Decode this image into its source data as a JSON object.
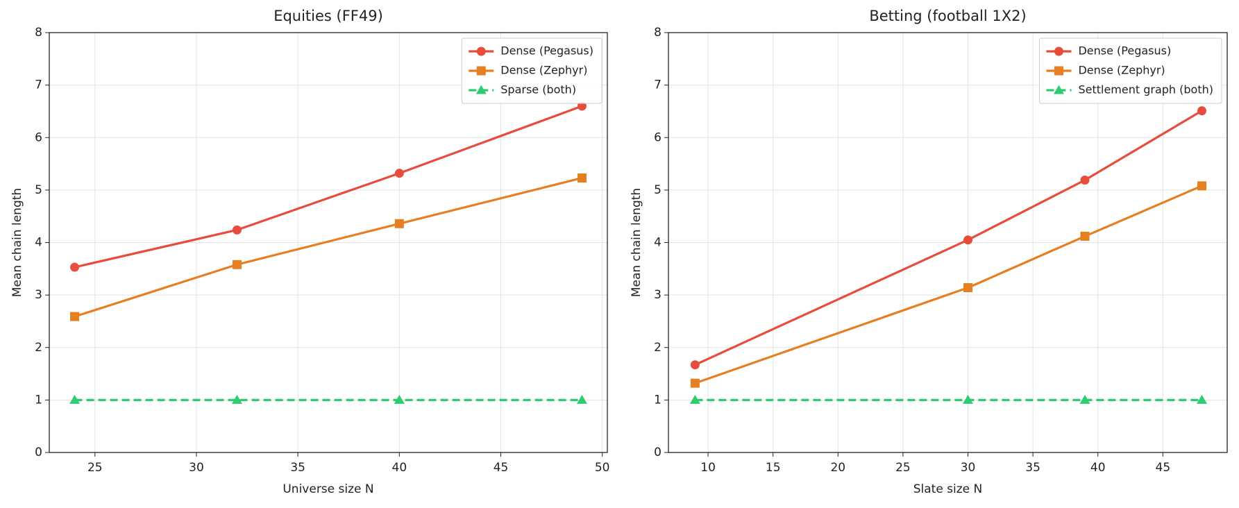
{
  "chart_data": [
    {
      "type": "line",
      "title": "Equities (FF49)",
      "xlabel": "Universe size N",
      "ylabel": "Mean chain length",
      "x": [
        24,
        32,
        40,
        49
      ],
      "series": [
        {
          "name": "Dense (Pegasus)",
          "color": "#e74c3c",
          "marker": "circle",
          "linestyle": "solid",
          "values": [
            3.53,
            4.24,
            5.32,
            6.6
          ]
        },
        {
          "name": "Dense (Zephyr)",
          "color": "#e67e22",
          "marker": "square",
          "linestyle": "solid",
          "values": [
            2.59,
            3.58,
            4.36,
            5.23
          ]
        },
        {
          "name": "Sparse (both)",
          "color": "#2ecc71",
          "marker": "triangle",
          "linestyle": "dashed",
          "values": [
            1,
            1,
            1,
            1
          ]
        }
      ],
      "xlim": [
        22.75,
        50.25
      ],
      "ylim": [
        0,
        8
      ],
      "xticks": [
        25,
        30,
        35,
        40,
        45,
        50
      ],
      "yticks": [
        0,
        1,
        2,
        3,
        4,
        5,
        6,
        7,
        8
      ],
      "grid": true,
      "legend": "upper right"
    },
    {
      "type": "line",
      "title": "Betting (football 1X2)",
      "xlabel": "Slate size N",
      "ylabel": "Mean chain length",
      "x": [
        9,
        30,
        39,
        48
      ],
      "series": [
        {
          "name": "Dense (Pegasus)",
          "color": "#e74c3c",
          "marker": "circle",
          "linestyle": "solid",
          "values": [
            1.67,
            4.05,
            5.19,
            6.51
          ]
        },
        {
          "name": "Dense (Zephyr)",
          "color": "#e67e22",
          "marker": "square",
          "linestyle": "solid",
          "values": [
            1.32,
            3.14,
            4.12,
            5.08
          ]
        },
        {
          "name": "Settlement graph (both)",
          "color": "#2ecc71",
          "marker": "triangle",
          "linestyle": "dashed",
          "values": [
            1,
            1,
            1,
            1
          ]
        }
      ],
      "xlim": [
        6.95,
        49.95
      ],
      "ylim": [
        0,
        8
      ],
      "xticks": [
        10,
        15,
        20,
        25,
        30,
        35,
        40,
        45
      ],
      "yticks": [
        0,
        1,
        2,
        3,
        4,
        5,
        6,
        7,
        8
      ],
      "grid": true,
      "legend": "upper right"
    }
  ]
}
